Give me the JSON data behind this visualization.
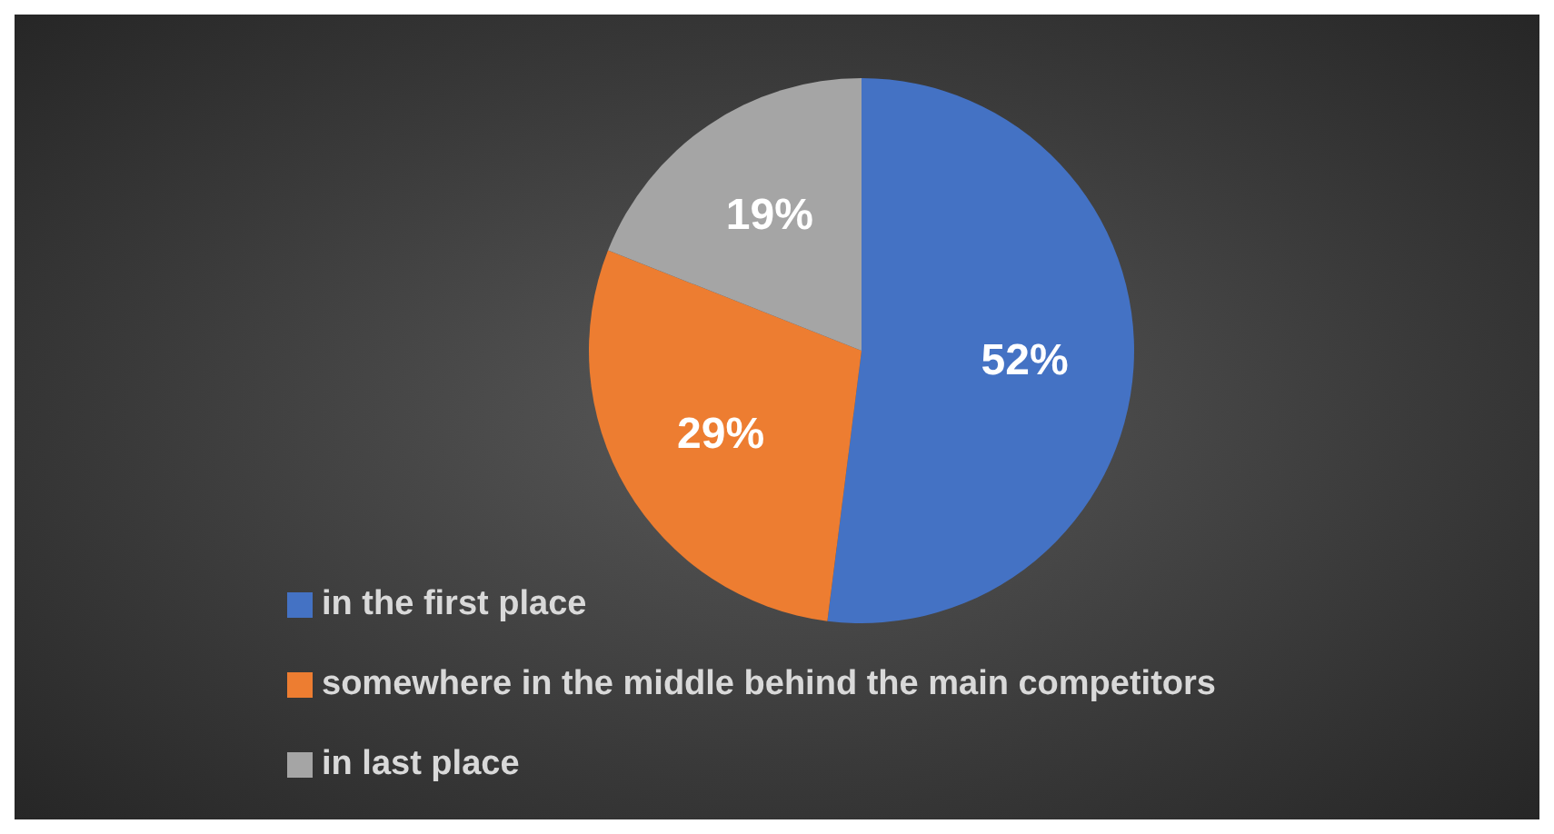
{
  "chart_data": {
    "type": "pie",
    "categories": [
      "in the first place",
      "somewhere in the middle behind the main competitors",
      "in last place"
    ],
    "values": [
      52,
      29,
      19
    ],
    "colors": [
      "#4472c4",
      "#ed7d31",
      "#a5a5a5"
    ],
    "value_labels": [
      "52%",
      "29%",
      "19%"
    ],
    "legend": "bottom"
  }
}
